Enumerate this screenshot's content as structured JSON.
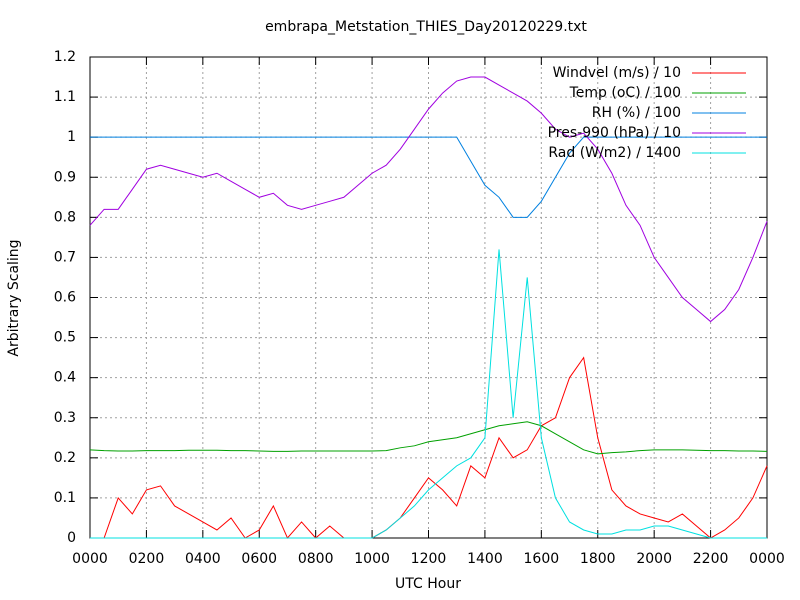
{
  "chart_data": {
    "type": "line",
    "title": "embrapa_Metstation_THIES_Day20120229.txt",
    "x_label": "UTC Hour",
    "y_label": "Arbitrary Scaling",
    "x": [
      0,
      0.5,
      1,
      1.5,
      2,
      2.5,
      3,
      3.5,
      4,
      4.5,
      5,
      5.5,
      6,
      6.5,
      7,
      7.5,
      8,
      8.5,
      9,
      9.5,
      10,
      10.5,
      11,
      11.5,
      12,
      12.5,
      13,
      13.5,
      14,
      14.5,
      15,
      15.5,
      16,
      16.5,
      17,
      17.5,
      18,
      18.5,
      19,
      19.5,
      20,
      20.5,
      21,
      21.5,
      22,
      22.5,
      23,
      23.5,
      24
    ],
    "series": [
      {
        "name": "Windvel (m/s) / 10",
        "color": "#ff0000",
        "values": [
          0,
          0,
          0.1,
          0.06,
          0.12,
          0.13,
          0.08,
          0.06,
          0.04,
          0.02,
          0.05,
          0,
          0.02,
          0.08,
          0,
          0.04,
          0,
          0.03,
          0,
          0,
          0,
          0.02,
          0.05,
          0.1,
          0.15,
          0.12,
          0.08,
          0.18,
          0.15,
          0.25,
          0.2,
          0.22,
          0.28,
          0.3,
          0.4,
          0.45,
          0.25,
          0.12,
          0.08,
          0.06,
          0.05,
          0.04,
          0.06,
          0.03,
          0,
          0.02,
          0.05,
          0.1,
          0.18
        ]
      },
      {
        "name": "Temp (oC) / 100",
        "color": "#00a000",
        "values": [
          0.22,
          0.218,
          0.217,
          0.217,
          0.218,
          0.218,
          0.218,
          0.219,
          0.219,
          0.219,
          0.218,
          0.218,
          0.217,
          0.216,
          0.216,
          0.217,
          0.217,
          0.217,
          0.217,
          0.217,
          0.217,
          0.218,
          0.225,
          0.23,
          0.24,
          0.245,
          0.25,
          0.26,
          0.27,
          0.28,
          0.285,
          0.29,
          0.28,
          0.26,
          0.24,
          0.22,
          0.21,
          0.213,
          0.215,
          0.218,
          0.22,
          0.22,
          0.22,
          0.219,
          0.218,
          0.218,
          0.217,
          0.217,
          0.216
        ]
      },
      {
        "name": "RH (%) / 100",
        "color": "#0080e0",
        "values": [
          1,
          1,
          1,
          1,
          1,
          1,
          1,
          1,
          1,
          1,
          1,
          1,
          1,
          1,
          1,
          1,
          1,
          1,
          1,
          1,
          1,
          1,
          1,
          1,
          1,
          1,
          1,
          0.94,
          0.88,
          0.85,
          0.8,
          0.8,
          0.84,
          0.9,
          0.96,
          1,
          1,
          1,
          1,
          1,
          1,
          1,
          1,
          1,
          1,
          1,
          1,
          1,
          1
        ]
      },
      {
        "name": "Pres-990 (hPa) / 10",
        "color": "#a000e0",
        "values": [
          0.78,
          0.82,
          0.82,
          0.87,
          0.92,
          0.93,
          0.92,
          0.91,
          0.9,
          0.91,
          0.89,
          0.87,
          0.85,
          0.86,
          0.83,
          0.82,
          0.83,
          0.84,
          0.85,
          0.88,
          0.91,
          0.93,
          0.97,
          1.02,
          1.07,
          1.11,
          1.14,
          1.15,
          1.15,
          1.13,
          1.11,
          1.09,
          1.06,
          1.02,
          1,
          1.01,
          0.97,
          0.91,
          0.83,
          0.78,
          0.7,
          0.65,
          0.6,
          0.57,
          0.54,
          0.57,
          0.62,
          0.7,
          0.79
        ]
      },
      {
        "name": "Rad (W/m2) / 1400",
        "color": "#00e0e0",
        "values": [
          0,
          0,
          0,
          0,
          0,
          0,
          0,
          0,
          0,
          0,
          0,
          0,
          0,
          0,
          0,
          0,
          0,
          0,
          0,
          0,
          0,
          0.02,
          0.05,
          0.08,
          0.12,
          0.15,
          0.18,
          0.2,
          0.25,
          0.72,
          0.3,
          0.65,
          0.25,
          0.1,
          0.04,
          0.02,
          0.01,
          0.01,
          0.02,
          0.02,
          0.03,
          0.03,
          0.02,
          0.01,
          0,
          0,
          0,
          0,
          0
        ]
      }
    ],
    "xlim": [
      0,
      24
    ],
    "xticks": [
      {
        "value": 0,
        "label": "0000"
      },
      {
        "value": 2,
        "label": "0200"
      },
      {
        "value": 4,
        "label": "0400"
      },
      {
        "value": 6,
        "label": "0600"
      },
      {
        "value": 8,
        "label": "0800"
      },
      {
        "value": 10,
        "label": "1000"
      },
      {
        "value": 12,
        "label": "1200"
      },
      {
        "value": 14,
        "label": "1400"
      },
      {
        "value": 16,
        "label": "1600"
      },
      {
        "value": 18,
        "label": "1800"
      },
      {
        "value": 20,
        "label": "2000"
      },
      {
        "value": 22,
        "label": "2200"
      },
      {
        "value": 24,
        "label": "0000"
      }
    ],
    "ylim": [
      0,
      1.2
    ],
    "yticks": [
      0,
      0.1,
      0.2,
      0.3,
      0.4,
      0.5,
      0.6,
      0.7,
      0.8,
      0.9,
      1,
      1.1,
      1.2
    ],
    "grid": true,
    "legend": "top-right"
  }
}
